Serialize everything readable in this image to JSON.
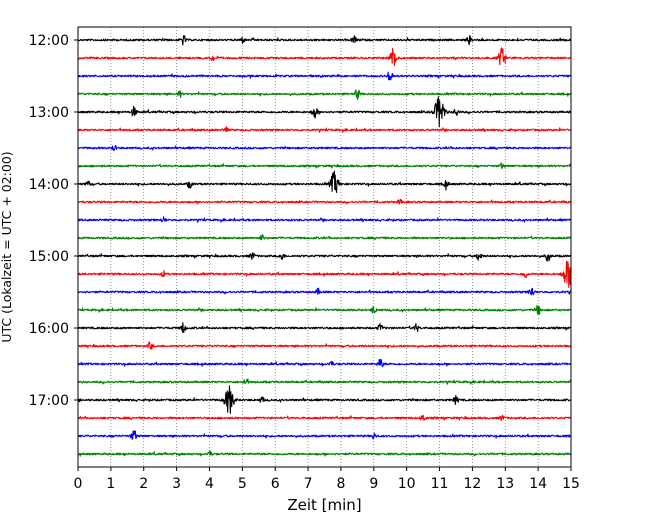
{
  "chart_data": {
    "type": "line",
    "title": "",
    "xlabel": "Zeit  [min]",
    "ylabel": "UTC (Lokalzeit = UTC + 02:00)",
    "xlim": [
      0,
      15
    ],
    "x_ticks": [
      0,
      1,
      2,
      3,
      4,
      5,
      6,
      7,
      8,
      9,
      10,
      11,
      12,
      13,
      14,
      15
    ],
    "x_tick_labels": [
      "0",
      "1",
      "2",
      "3",
      "4",
      "5",
      "6",
      "7",
      "8",
      "9",
      "10",
      "11",
      "12",
      "13",
      "14",
      "15"
    ],
    "y_tick_labels": [
      "12:00",
      "13:00",
      "14:00",
      "15:00",
      "16:00",
      "17:00"
    ],
    "grid": "vertical dotted",
    "trace_colors": [
      "#000000",
      "#ff0000",
      "#0000ff",
      "#008000"
    ],
    "traces": [
      {
        "start": "12:00",
        "events": [
          [
            3.2,
            0.5
          ],
          [
            5.0,
            0.3
          ],
          [
            8.4,
            0.4
          ],
          [
            11.9,
            0.4
          ]
        ]
      },
      {
        "start": "12:15",
        "events": [
          [
            4.1,
            0.3
          ],
          [
            9.6,
            1.0
          ],
          [
            12.9,
            1.0
          ]
        ]
      },
      {
        "start": "12:30",
        "events": [
          [
            9.5,
            0.6
          ]
        ]
      },
      {
        "start": "12:45",
        "events": [
          [
            3.1,
            0.3
          ],
          [
            8.5,
            0.5
          ]
        ]
      },
      {
        "start": "13:00",
        "events": [
          [
            1.7,
            0.5
          ],
          [
            7.2,
            0.6
          ],
          [
            11.0,
            1.6
          ],
          [
            11.5,
            0.4
          ]
        ]
      },
      {
        "start": "13:15",
        "events": [
          [
            4.5,
            0.3
          ]
        ]
      },
      {
        "start": "13:30",
        "events": [
          [
            1.1,
            0.3
          ]
        ]
      },
      {
        "start": "13:45",
        "events": [
          [
            12.9,
            0.3
          ]
        ]
      },
      {
        "start": "14:00",
        "events": [
          [
            0.3,
            0.3
          ],
          [
            3.4,
            0.4
          ],
          [
            7.8,
            1.2
          ],
          [
            11.2,
            0.4
          ]
        ]
      },
      {
        "start": "14:15",
        "events": [
          [
            9.8,
            0.3
          ]
        ]
      },
      {
        "start": "14:30",
        "events": [
          [
            2.6,
            0.3
          ]
        ]
      },
      {
        "start": "14:45",
        "events": [
          [
            5.6,
            0.3
          ]
        ]
      },
      {
        "start": "15:00",
        "events": [
          [
            5.3,
            0.4
          ],
          [
            6.2,
            0.4
          ],
          [
            12.2,
            0.5
          ],
          [
            14.3,
            0.5
          ]
        ]
      },
      {
        "start": "15:15",
        "events": [
          [
            2.6,
            0.3
          ],
          [
            13.6,
            0.4
          ],
          [
            14.9,
            1.4
          ]
        ]
      },
      {
        "start": "15:30",
        "events": [
          [
            7.3,
            0.3
          ],
          [
            13.8,
            0.5
          ]
        ]
      },
      {
        "start": "15:45",
        "events": [
          [
            9.0,
            0.4
          ],
          [
            14.0,
            0.5
          ]
        ]
      },
      {
        "start": "16:00",
        "events": [
          [
            3.2,
            0.5
          ],
          [
            9.2,
            0.4
          ],
          [
            10.3,
            0.4
          ]
        ]
      },
      {
        "start": "16:15",
        "events": [
          [
            2.2,
            0.4
          ]
        ]
      },
      {
        "start": "16:30",
        "events": [
          [
            7.7,
            0.3
          ],
          [
            9.2,
            0.5
          ]
        ]
      },
      {
        "start": "16:45",
        "events": [
          [
            5.1,
            0.4
          ]
        ]
      },
      {
        "start": "17:00",
        "events": [
          [
            4.6,
            1.4
          ],
          [
            5.6,
            0.3
          ],
          [
            11.5,
            0.4
          ]
        ]
      },
      {
        "start": "17:15",
        "events": [
          [
            10.5,
            0.4
          ],
          [
            12.9,
            0.3
          ]
        ]
      },
      {
        "start": "17:30",
        "events": [
          [
            1.7,
            0.6
          ],
          [
            9.0,
            0.3
          ]
        ]
      },
      {
        "start": "17:45",
        "events": [
          [
            4.0,
            0.3
          ]
        ]
      }
    ]
  }
}
